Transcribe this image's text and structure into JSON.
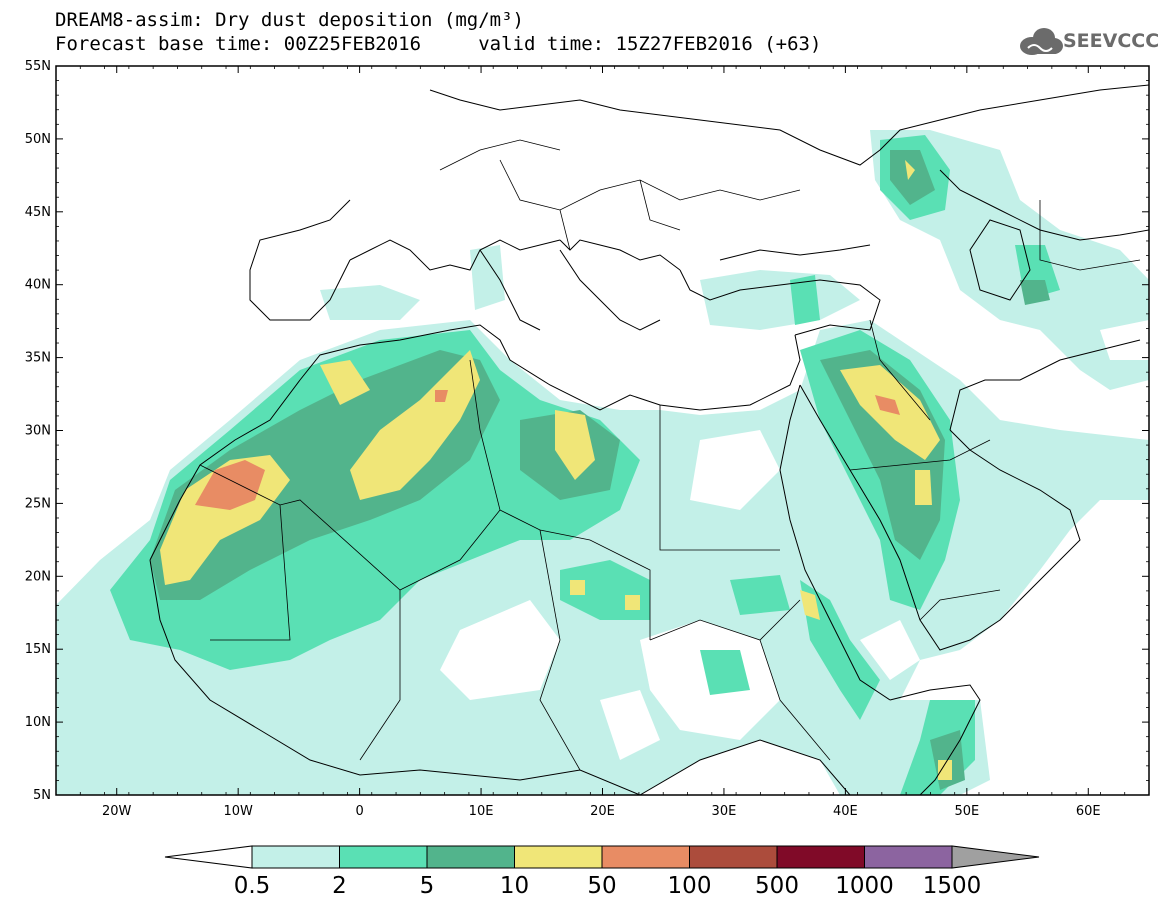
{
  "title_line1": "DREAM8-assim: Dry dust deposition (mg/m³)",
  "title_line2": "Forecast base time: 00Z25FEB2016     valid time: 15Z27FEB2016 (+63)",
  "logo": {
    "text": "SEEVCCC",
    "icon": "cloud-icon",
    "color": "#6b6b6b"
  },
  "map": {
    "lon_range": [
      -25,
      65
    ],
    "lat_range": [
      5,
      55
    ],
    "lat_ticks": [
      "55N",
      "50N",
      "45N",
      "40N",
      "35N",
      "30N",
      "25N",
      "20N",
      "15N",
      "10N",
      "5N"
    ],
    "lon_ticks": [
      "20W",
      "10W",
      "0",
      "10E",
      "20E",
      "30E",
      "40E",
      "50E",
      "60E"
    ]
  },
  "colorbar": {
    "labels": [
      "0.5",
      "2",
      "5",
      "10",
      "50",
      "100",
      "500",
      "1000",
      "1500"
    ],
    "colors": [
      "#c3f0e8",
      "#5ae0b4",
      "#52b48c",
      "#f0e678",
      "#e88c64",
      "#ac4c3c",
      "#800a28",
      "#8c64a0",
      "#a0a0a0"
    ]
  }
}
